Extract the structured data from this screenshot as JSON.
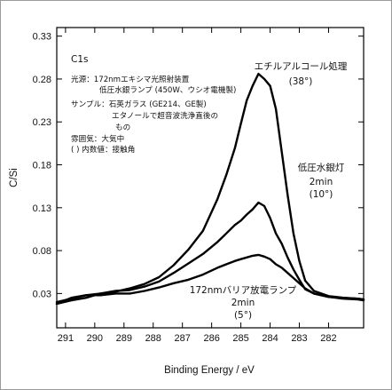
{
  "chart_data": {
    "type": "line",
    "xlabel": "Binding Energy / eV",
    "ylabel": "C/Si",
    "xlim": [
      291.3,
      280.8
    ],
    "ylim": [
      -0.01,
      0.34
    ],
    "x_ticks": [
      291,
      290,
      289,
      288,
      287,
      286,
      285,
      284,
      283,
      282
    ],
    "y_ticks": [
      0.03,
      0.08,
      0.13,
      0.18,
      0.23,
      0.28,
      0.33
    ],
    "inner_label": "C1s",
    "notes": [
      "光源：172nmエキシマ光照射装置",
      "低圧水銀ランプ (450W、ウシオ電機製)",
      "サンプル：石英ガラス (GE214、GE製)",
      "エタノールで超音波洗浄直後の",
      "もの",
      "雰囲気：大気中",
      "(    ) 内数値：接触角"
    ],
    "series": [
      {
        "name": "エチルアルコール処理",
        "angle_label": "(38°)",
        "x": [
          291.3,
          290.8,
          290.3,
          289.8,
          289.3,
          288.8,
          288.3,
          287.8,
          287.3,
          286.8,
          286.3,
          285.8,
          285.5,
          285.2,
          285.0,
          284.8,
          284.6,
          284.4,
          284.2,
          284.0,
          283.8,
          283.6,
          283.4,
          283.2,
          283.0,
          282.8,
          282.5,
          282.0,
          281.5,
          281.0,
          280.8
        ],
        "y": [
          0.018,
          0.022,
          0.025,
          0.03,
          0.032,
          0.036,
          0.041,
          0.049,
          0.063,
          0.081,
          0.103,
          0.14,
          0.168,
          0.2,
          0.228,
          0.255,
          0.272,
          0.286,
          0.28,
          0.272,
          0.245,
          0.195,
          0.145,
          0.1,
          0.068,
          0.045,
          0.033,
          0.027,
          0.025,
          0.024,
          0.023
        ]
      },
      {
        "name": "低圧水銀灯",
        "sub_label": "2min",
        "angle_label": "(10°)",
        "x": [
          291.3,
          290.8,
          290.3,
          289.8,
          289.3,
          288.8,
          288.3,
          287.8,
          287.3,
          286.8,
          286.3,
          285.8,
          285.5,
          285.2,
          285.0,
          284.8,
          284.6,
          284.4,
          284.2,
          284.0,
          283.8,
          283.6,
          283.4,
          283.2,
          283.0,
          282.8,
          282.5,
          282.0,
          281.5,
          281.0,
          280.8
        ],
        "y": [
          0.018,
          0.025,
          0.028,
          0.03,
          0.033,
          0.034,
          0.038,
          0.044,
          0.054,
          0.065,
          0.076,
          0.09,
          0.1,
          0.11,
          0.115,
          0.122,
          0.128,
          0.136,
          0.132,
          0.118,
          0.1,
          0.088,
          0.072,
          0.058,
          0.046,
          0.035,
          0.03,
          0.026,
          0.025,
          0.024,
          0.023
        ]
      },
      {
        "name": "172nmバリア放電ランプ",
        "sub_label": "2min",
        "angle_label": "(5°)",
        "x": [
          291.3,
          290.8,
          290.3,
          289.8,
          289.3,
          288.8,
          288.3,
          287.8,
          287.3,
          286.8,
          286.3,
          285.8,
          285.5,
          285.2,
          285.0,
          284.8,
          284.6,
          284.4,
          284.2,
          284.0,
          283.8,
          283.6,
          283.4,
          283.2,
          283.0,
          282.8,
          282.5,
          282.0,
          281.5,
          281.0,
          280.8
        ],
        "y": [
          0.02,
          0.024,
          0.028,
          0.028,
          0.03,
          0.03,
          0.033,
          0.037,
          0.042,
          0.046,
          0.052,
          0.06,
          0.064,
          0.068,
          0.07,
          0.072,
          0.074,
          0.075,
          0.073,
          0.07,
          0.064,
          0.06,
          0.054,
          0.048,
          0.042,
          0.036,
          0.03,
          0.026,
          0.024,
          0.023,
          0.022
        ]
      }
    ],
    "line_color": "#000000",
    "grid": false
  }
}
